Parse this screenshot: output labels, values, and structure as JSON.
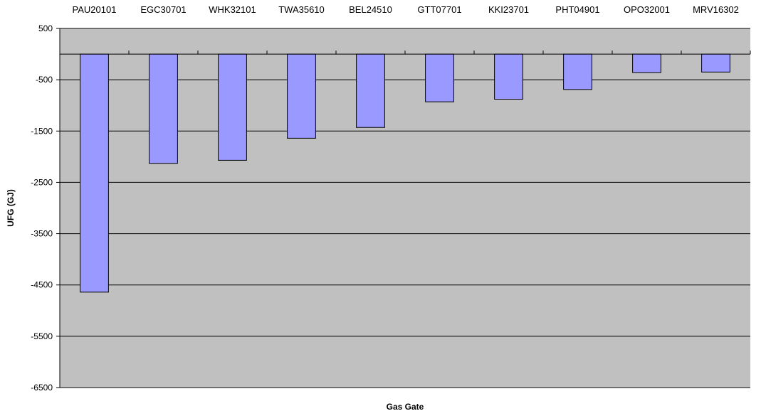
{
  "chart_data": {
    "type": "bar",
    "title": "",
    "xlabel": "Gas Gate",
    "ylabel": "UFG (GJ)",
    "ylim": [
      -6500,
      500
    ],
    "ytick_step": 1000,
    "grid": true,
    "x_tick_position": "top",
    "categories": [
      "PAU20101",
      "EGC30701",
      "WHK32101",
      "TWA35610",
      "BEL24510",
      "GTT07701",
      "KKI23701",
      "PHT04901",
      "OPO32001",
      "MRV16302"
    ],
    "values": [
      -4640,
      -2130,
      -2070,
      -1640,
      -1430,
      -930,
      -880,
      -690,
      -360,
      -350
    ],
    "colors": {
      "bar_fill": "#9999ff",
      "bar_stroke": "#000000",
      "plot_background": "#c0c0c0",
      "gridline": "#000000"
    }
  }
}
